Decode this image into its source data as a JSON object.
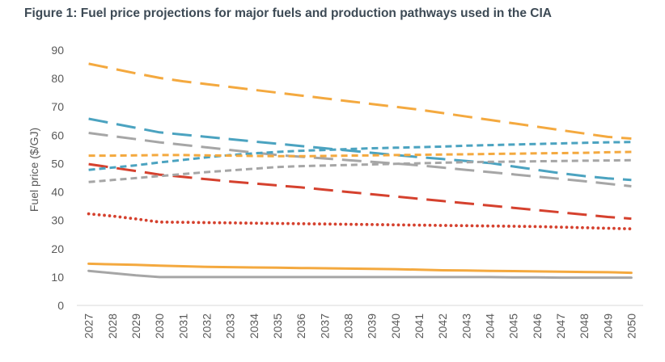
{
  "title": "Figure 1: Fuel price projections for major fuels and production pathways used in the CIA",
  "chart_data": {
    "type": "line",
    "title": "Figure 1: Fuel price projections for major fuels and production pathways used in the CIA",
    "xlabel": "",
    "ylabel": "Fuel price ($/GJ)",
    "ylim": [
      0,
      90
    ],
    "yticks": [
      0,
      10,
      20,
      30,
      40,
      50,
      60,
      70,
      80,
      90
    ],
    "x": [
      "2027",
      "2028",
      "2029",
      "2030",
      "2031",
      "2032",
      "2033",
      "2034",
      "2035",
      "2036",
      "2037",
      "2038",
      "2039",
      "2040",
      "2041",
      "2042",
      "2043",
      "2044",
      "2045",
      "2046",
      "2047",
      "2048",
      "2049",
      "2050"
    ],
    "legend": "none",
    "series": [
      {
        "name": "Orange long dash",
        "color": "#F4A93F",
        "style": "longdash",
        "values": [
          85.2,
          83.5,
          81.8,
          80.2,
          79.0,
          78.0,
          77.0,
          76.0,
          75.0,
          74.0,
          73.0,
          72.0,
          71.0,
          70.0,
          69.0,
          67.8,
          66.6,
          65.4,
          64.2,
          63.0,
          61.8,
          60.6,
          59.4,
          58.8
        ]
      },
      {
        "name": "Blue long dash",
        "color": "#4BA3C0",
        "style": "longdash",
        "values": [
          65.8,
          64.2,
          62.6,
          61.0,
          60.2,
          59.4,
          58.6,
          57.8,
          57.0,
          56.2,
          55.4,
          54.6,
          53.8,
          53.0,
          52.3,
          51.6,
          50.9,
          50.2,
          49.0,
          47.8,
          46.6,
          45.6,
          44.8,
          44.2
        ]
      },
      {
        "name": "Grey long dash",
        "color": "#A6A6A6",
        "style": "longdash",
        "values": [
          60.8,
          59.7,
          58.6,
          57.5,
          56.6,
          55.7,
          54.8,
          53.9,
          53.0,
          52.4,
          51.8,
          51.2,
          50.6,
          50.0,
          49.4,
          48.6,
          47.8,
          47.0,
          46.2,
          45.4,
          44.6,
          43.8,
          42.9,
          42.0
        ]
      },
      {
        "name": "Red long dash",
        "color": "#D5412E",
        "style": "longdash",
        "values": [
          49.8,
          48.6,
          47.4,
          46.1,
          45.3,
          44.5,
          43.7,
          43.0,
          42.3,
          41.6,
          40.8,
          40.0,
          39.2,
          38.4,
          37.6,
          36.8,
          36.0,
          35.2,
          34.4,
          33.6,
          32.8,
          32.0,
          31.2,
          30.6
        ]
      },
      {
        "name": "Blue short dash",
        "color": "#4BA3C0",
        "style": "shortdash",
        "values": [
          47.8,
          48.6,
          49.4,
          50.4,
          51.3,
          52.2,
          53.0,
          53.6,
          54.1,
          54.5,
          54.8,
          55.1,
          55.4,
          55.6,
          55.8,
          56.0,
          56.3,
          56.5,
          56.7,
          56.9,
          57.1,
          57.3,
          57.5,
          57.6
        ]
      },
      {
        "name": "Orange short dash",
        "color": "#F4A93F",
        "style": "shortdash",
        "values": [
          52.8,
          52.8,
          52.9,
          53.0,
          53.0,
          52.9,
          52.8,
          52.7,
          52.6,
          52.6,
          52.7,
          52.8,
          52.9,
          53.0,
          53.1,
          53.2,
          53.3,
          53.4,
          53.5,
          53.6,
          53.7,
          53.8,
          54.0,
          54.1
        ]
      },
      {
        "name": "Grey short dash",
        "color": "#A6A6A6",
        "style": "shortdash",
        "values": [
          43.5,
          44.2,
          44.9,
          45.6,
          46.3,
          47.0,
          47.6,
          48.2,
          48.8,
          49.1,
          49.3,
          49.5,
          49.7,
          49.9,
          50.1,
          50.3,
          50.5,
          50.6,
          50.7,
          50.8,
          50.9,
          51.0,
          51.1,
          51.2
        ]
      },
      {
        "name": "Red dotted",
        "color": "#D5412E",
        "style": "dotted",
        "values": [
          32.3,
          31.5,
          30.5,
          29.4,
          29.3,
          29.2,
          29.1,
          29.0,
          28.9,
          28.8,
          28.7,
          28.6,
          28.5,
          28.4,
          28.3,
          28.2,
          28.1,
          28.0,
          27.9,
          27.8,
          27.6,
          27.4,
          27.2,
          27.0
        ]
      },
      {
        "name": "Orange solid",
        "color": "#F4A93F",
        "style": "solid",
        "values": [
          14.7,
          14.5,
          14.3,
          14.0,
          13.8,
          13.6,
          13.5,
          13.4,
          13.3,
          13.2,
          13.1,
          13.0,
          12.9,
          12.8,
          12.6,
          12.4,
          12.3,
          12.2,
          12.1,
          12.0,
          11.9,
          11.8,
          11.7,
          11.5
        ]
      },
      {
        "name": "Grey solid",
        "color": "#A6A6A6",
        "style": "solid",
        "values": [
          12.2,
          11.4,
          10.6,
          10.0,
          10.0,
          10.0,
          10.0,
          10.0,
          10.0,
          10.0,
          10.0,
          10.0,
          10.0,
          10.0,
          10.0,
          10.0,
          10.0,
          10.0,
          9.9,
          9.9,
          9.8,
          9.8,
          9.8,
          9.8
        ]
      }
    ]
  }
}
